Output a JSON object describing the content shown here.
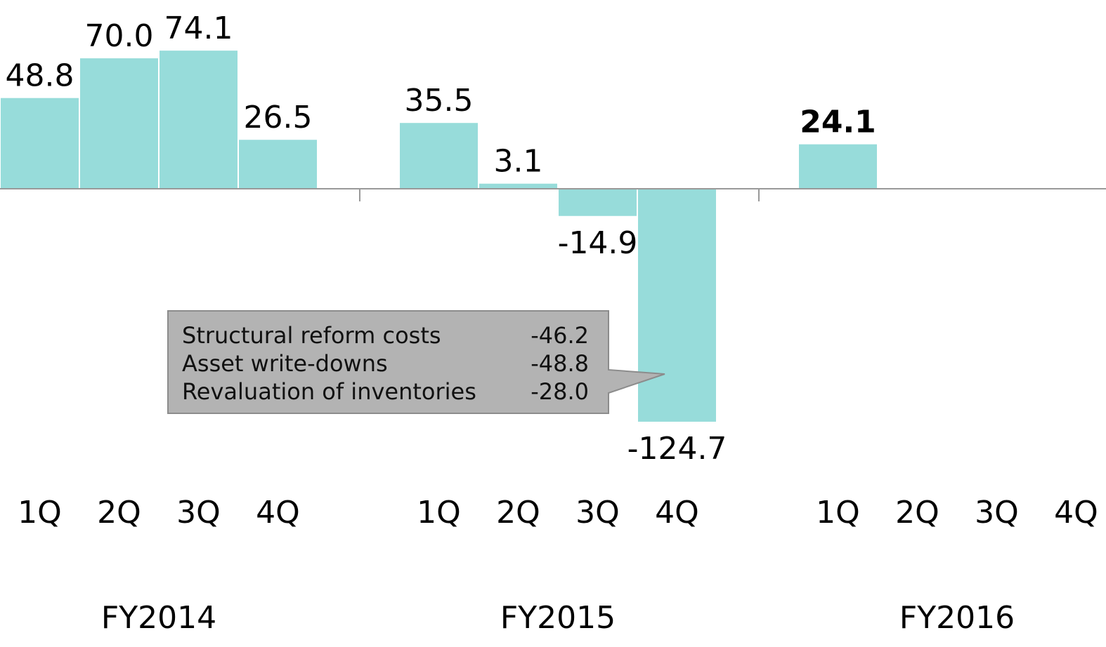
{
  "chart_data": {
    "type": "bar",
    "colors": {
      "bar": "#97dcda",
      "bar_edge": "#ffffff",
      "axis": "#999999",
      "callout_fill": "#b3b3b3",
      "callout_edge": "#8c8c8c"
    },
    "years": [
      {
        "label": "FY2014",
        "quarters": [
          "1Q",
          "2Q",
          "3Q",
          "4Q"
        ],
        "values": [
          48.8,
          70.0,
          74.1,
          26.5
        ],
        "value_labels": [
          "48.8",
          "70.0",
          "74.1",
          "26.5"
        ]
      },
      {
        "label": "FY2015",
        "quarters": [
          "1Q",
          "2Q",
          "3Q",
          "4Q"
        ],
        "values": [
          35.5,
          3.1,
          -14.9,
          -124.7
        ],
        "value_labels": [
          "35.5",
          "3.1",
          "-14.9",
          "-124.7"
        ]
      },
      {
        "label": "FY2016",
        "quarters": [
          "1Q",
          "2Q",
          "3Q",
          "4Q"
        ],
        "values": [
          24.1,
          null,
          null,
          null
        ],
        "value_labels": [
          "24.1",
          "",
          "",
          ""
        ],
        "bold": [
          true,
          false,
          false,
          false
        ]
      }
    ],
    "callout": {
      "target": "FY2015 4Q",
      "rows": [
        {
          "label": "Structural reform costs",
          "value": "-46.2"
        },
        {
          "label": "Asset write-downs",
          "value": "-48.8"
        },
        {
          "label": "Revaluation of inventories",
          "value": "-28.0"
        }
      ]
    }
  }
}
